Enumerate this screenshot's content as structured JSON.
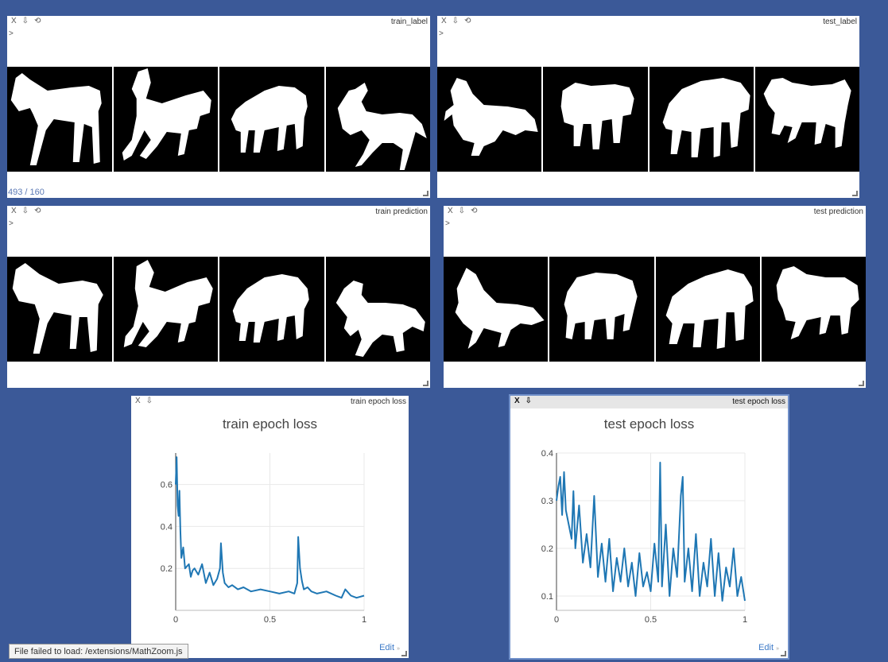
{
  "controls": {
    "close": "X",
    "download": "⇩",
    "reset": "⟲"
  },
  "panes": [
    {
      "title": "train_label",
      "prompt": ">",
      "counter": "493 / 160",
      "images": [
        "horse-mask",
        "horse-mask",
        "horse-mask",
        "horse-mask"
      ]
    },
    {
      "title": "test_label",
      "prompt": ">",
      "images": [
        "horse-mask",
        "horse-mask",
        "horse-mask",
        "horse-mask"
      ]
    },
    {
      "title": "train prediction",
      "prompt": ">",
      "images": [
        "horse-mask",
        "horse-mask",
        "horse-mask",
        "horse-mask"
      ]
    },
    {
      "title": "test prediction",
      "prompt": ">",
      "images": [
        "horse-mask",
        "horse-mask",
        "horse-mask",
        "horse-mask"
      ]
    }
  ],
  "plots": [
    {
      "pane_title": "train epoch loss",
      "edit_label": "Edit",
      "edit_glyph": "»"
    },
    {
      "pane_title": "test epoch loss",
      "edit_label": "Edit",
      "edit_glyph": "»"
    }
  ],
  "chart_data": [
    {
      "type": "line",
      "title": "train epoch loss",
      "xlim": [
        0,
        1
      ],
      "ylim": [
        0,
        0.75
      ],
      "xticks": [
        0,
        0.5,
        1
      ],
      "yticks": [
        0.2,
        0.4,
        0.6
      ],
      "grid": true,
      "color": "#1f77b4",
      "series": [
        {
          "x": [
            0,
            0.005,
            0.01,
            0.015,
            0.02,
            0.025,
            0.03,
            0.04,
            0.05,
            0.06,
            0.07,
            0.08,
            0.09,
            0.1,
            0.12,
            0.14,
            0.16,
            0.18,
            0.2,
            0.22,
            0.235,
            0.24,
            0.25,
            0.26,
            0.28,
            0.3,
            0.33,
            0.36,
            0.4,
            0.45,
            0.5,
            0.55,
            0.6,
            0.63,
            0.645,
            0.65,
            0.66,
            0.67,
            0.68,
            0.7,
            0.72,
            0.75,
            0.8,
            0.85,
            0.88,
            0.9,
            0.93,
            0.96,
            1
          ],
          "y": [
            0.6,
            0.73,
            0.5,
            0.45,
            0.57,
            0.38,
            0.25,
            0.3,
            0.2,
            0.21,
            0.22,
            0.16,
            0.19,
            0.2,
            0.17,
            0.22,
            0.13,
            0.18,
            0.12,
            0.15,
            0.2,
            0.32,
            0.18,
            0.13,
            0.11,
            0.12,
            0.1,
            0.11,
            0.09,
            0.1,
            0.09,
            0.08,
            0.09,
            0.08,
            0.13,
            0.35,
            0.2,
            0.14,
            0.1,
            0.11,
            0.09,
            0.08,
            0.09,
            0.07,
            0.06,
            0.1,
            0.07,
            0.06,
            0.07
          ]
        }
      ]
    },
    {
      "type": "line",
      "title": "test epoch loss",
      "xlim": [
        0,
        1
      ],
      "ylim": [
        0.07,
        0.4
      ],
      "xticks": [
        0,
        0.5,
        1
      ],
      "yticks": [
        0.1,
        0.2,
        0.3,
        0.4
      ],
      "grid": true,
      "color": "#1f77b4",
      "series": [
        {
          "x": [
            0,
            0.01,
            0.02,
            0.03,
            0.04,
            0.05,
            0.06,
            0.07,
            0.08,
            0.09,
            0.1,
            0.12,
            0.14,
            0.16,
            0.18,
            0.2,
            0.22,
            0.24,
            0.26,
            0.28,
            0.3,
            0.32,
            0.34,
            0.36,
            0.38,
            0.4,
            0.42,
            0.44,
            0.46,
            0.48,
            0.5,
            0.52,
            0.54,
            0.55,
            0.56,
            0.58,
            0.6,
            0.62,
            0.64,
            0.66,
            0.67,
            0.68,
            0.7,
            0.72,
            0.74,
            0.76,
            0.78,
            0.8,
            0.82,
            0.84,
            0.86,
            0.88,
            0.9,
            0.92,
            0.94,
            0.96,
            0.98,
            1
          ],
          "y": [
            0.3,
            0.33,
            0.35,
            0.27,
            0.36,
            0.28,
            0.26,
            0.24,
            0.22,
            0.32,
            0.2,
            0.29,
            0.17,
            0.23,
            0.16,
            0.31,
            0.14,
            0.21,
            0.13,
            0.22,
            0.11,
            0.18,
            0.13,
            0.2,
            0.12,
            0.17,
            0.1,
            0.19,
            0.12,
            0.15,
            0.11,
            0.21,
            0.13,
            0.38,
            0.12,
            0.25,
            0.1,
            0.2,
            0.14,
            0.31,
            0.35,
            0.13,
            0.2,
            0.11,
            0.23,
            0.1,
            0.17,
            0.12,
            0.22,
            0.1,
            0.19,
            0.09,
            0.16,
            0.12,
            0.2,
            0.1,
            0.14,
            0.09
          ]
        }
      ]
    }
  ],
  "status": {
    "message": "File failed to load: /extensions/MathZoom.js"
  }
}
